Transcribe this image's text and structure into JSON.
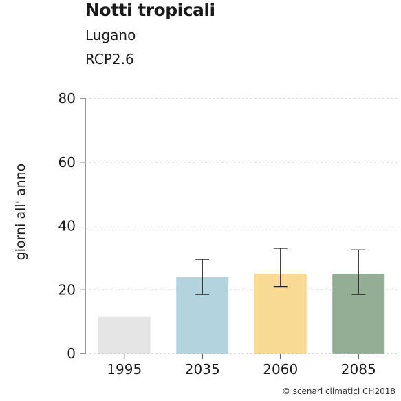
{
  "chart_data": {
    "type": "bar",
    "title": "Notti tropicali",
    "subtitle": [
      "Lugano",
      "RCP2.6"
    ],
    "xlabel": "",
    "ylabel": "giorni all' anno",
    "ylim": [
      0,
      80
    ],
    "yticks": [
      0,
      20,
      40,
      60,
      80
    ],
    "categories": [
      "1995",
      "2035",
      "2060",
      "2085"
    ],
    "values": [
      11.5,
      24,
      25,
      25
    ],
    "error_low": [
      null,
      18.5,
      21,
      18.5
    ],
    "error_high": [
      null,
      29.5,
      33,
      32.5
    ],
    "colors": [
      "#e5e5e5",
      "#b3d3de",
      "#f9da93",
      "#94ad95"
    ],
    "grid": true,
    "source": "© scenari climatici CH2018"
  }
}
